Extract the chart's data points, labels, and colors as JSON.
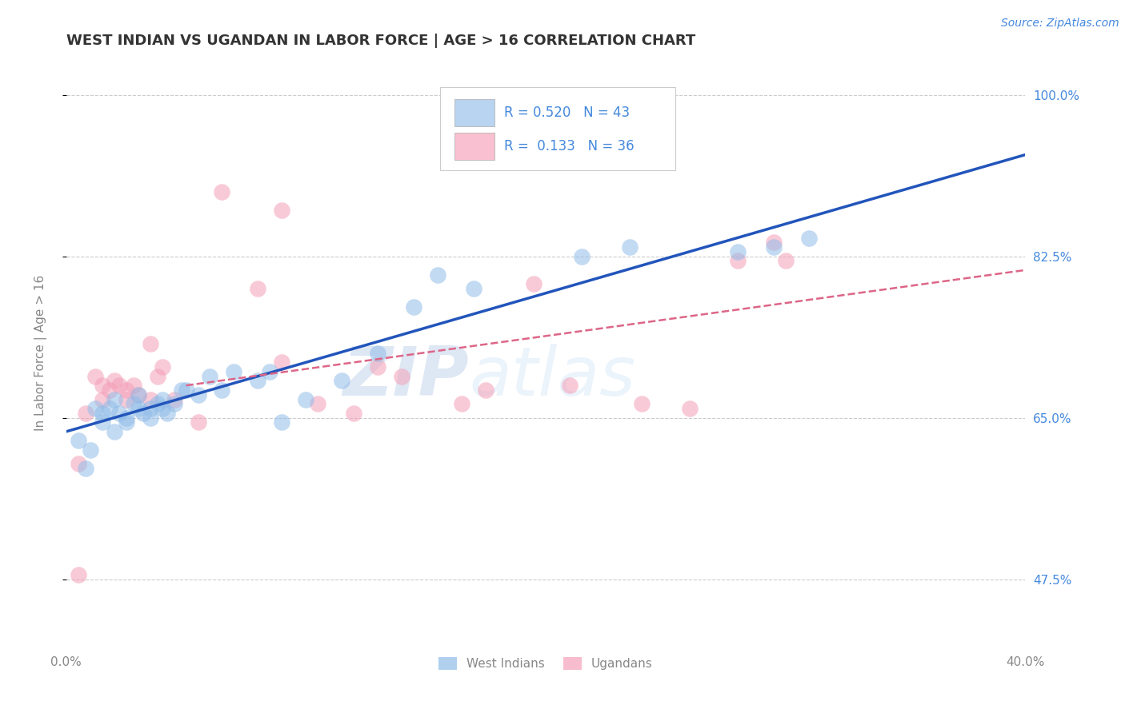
{
  "title": "WEST INDIAN VS UGANDAN IN LABOR FORCE | AGE > 16 CORRELATION CHART",
  "source_text": "Source: ZipAtlas.com",
  "ylabel": "In Labor Force | Age > 16",
  "watermark_zip": "ZIP",
  "watermark_atlas": "atlas",
  "xlim": [
    0.0,
    0.4
  ],
  "ylim": [
    0.4,
    1.04
  ],
  "xtick_labels": [
    "0.0%",
    "40.0%"
  ],
  "ytick_labels": [
    "47.5%",
    "65.0%",
    "82.5%",
    "100.0%"
  ],
  "ytick_values": [
    0.475,
    0.65,
    0.825,
    1.0
  ],
  "xtick_values": [
    0.0,
    0.4
  ],
  "west_indian_scatter_x": [
    0.005,
    0.008,
    0.01,
    0.012,
    0.015,
    0.015,
    0.018,
    0.02,
    0.02,
    0.022,
    0.025,
    0.025,
    0.028,
    0.03,
    0.03,
    0.032,
    0.035,
    0.035,
    0.038,
    0.04,
    0.04,
    0.042,
    0.045,
    0.048,
    0.05,
    0.055,
    0.06,
    0.065,
    0.07,
    0.08,
    0.085,
    0.09,
    0.1,
    0.115,
    0.13,
    0.145,
    0.155,
    0.17,
    0.215,
    0.235,
    0.28,
    0.295,
    0.31
  ],
  "west_indian_scatter_y": [
    0.625,
    0.595,
    0.615,
    0.66,
    0.655,
    0.645,
    0.66,
    0.67,
    0.635,
    0.655,
    0.65,
    0.645,
    0.665,
    0.675,
    0.66,
    0.655,
    0.66,
    0.65,
    0.665,
    0.67,
    0.66,
    0.655,
    0.665,
    0.68,
    0.68,
    0.675,
    0.695,
    0.68,
    0.7,
    0.69,
    0.7,
    0.645,
    0.67,
    0.69,
    0.72,
    0.77,
    0.805,
    0.79,
    0.825,
    0.835,
    0.83,
    0.835,
    0.845
  ],
  "ugandan_scatter_x": [
    0.005,
    0.008,
    0.012,
    0.015,
    0.015,
    0.018,
    0.02,
    0.022,
    0.025,
    0.025,
    0.028,
    0.03,
    0.035,
    0.035,
    0.038,
    0.04,
    0.045,
    0.055,
    0.065,
    0.09,
    0.09,
    0.105,
    0.12,
    0.13,
    0.14,
    0.165,
    0.175,
    0.195,
    0.21,
    0.24,
    0.26,
    0.28,
    0.295,
    0.3,
    0.005,
    0.08
  ],
  "ugandan_scatter_y": [
    0.48,
    0.655,
    0.695,
    0.685,
    0.67,
    0.68,
    0.69,
    0.685,
    0.68,
    0.67,
    0.685,
    0.675,
    0.73,
    0.67,
    0.695,
    0.705,
    0.67,
    0.645,
    0.895,
    0.875,
    0.71,
    0.665,
    0.655,
    0.705,
    0.695,
    0.665,
    0.68,
    0.795,
    0.685,
    0.665,
    0.66,
    0.82,
    0.84,
    0.82,
    0.6,
    0.79
  ],
  "west_indian_line_x": [
    0.0,
    0.4
  ],
  "west_indian_line_y": [
    0.635,
    0.935
  ],
  "ugandan_line_x": [
    0.05,
    0.4
  ],
  "ugandan_line_y": [
    0.685,
    0.81
  ],
  "scatter_color_west": "#90bce8",
  "scatter_color_ugandan": "#f4a0b8",
  "line_color_west": "#2255bb",
  "line_color_ugandan": "#dd6688",
  "grid_color": "#cccccc",
  "background_color": "#ffffff",
  "legend_box_color_west": "#b8d4f0",
  "legend_box_color_ugandan": "#f8c0d0",
  "r_value_west": "0.520",
  "n_value_west": "43",
  "r_value_ugandan": "0.133",
  "n_value_ugandan": "36",
  "title_color": "#333333",
  "axis_label_color": "#888888",
  "ytick_right_color": "#4488dd",
  "title_fontsize": 13,
  "label_fontsize": 11,
  "tick_fontsize": 11,
  "watermark_color_zip": "#c8d8ee",
  "watermark_color_atlas": "#d8e8f8",
  "watermark_fontsize": 62,
  "source_fontsize": 10
}
